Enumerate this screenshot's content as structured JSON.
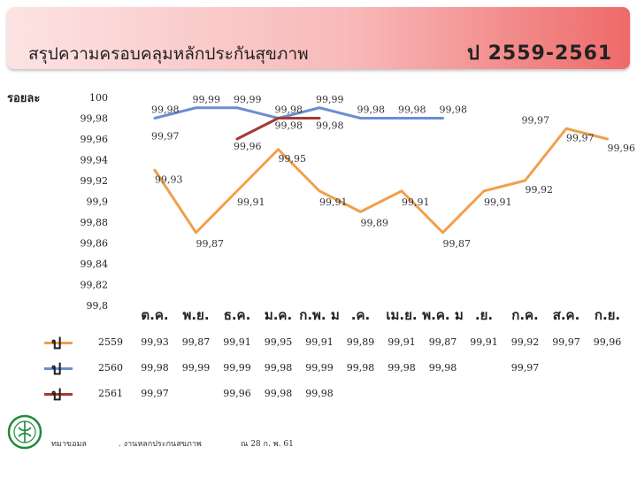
{
  "header": {
    "title": "สรุปความครอบคลุมหลักประกันสุขภาพ",
    "year_range": "ป  2559-2561"
  },
  "unit_label": "รอยละ",
  "legend_rows": [
    {
      "key": "ป",
      "year": "2559",
      "color": "#f0a04b"
    },
    {
      "key": "ป",
      "year": "2560",
      "color": "#6a8fd0"
    },
    {
      "key": "ป",
      "year": "2561",
      "color": "#a33a32"
    }
  ],
  "chart_data": {
    "type": "line",
    "categories": [
      "ต.ค.",
      "พ.ย.",
      "ธ.ค.",
      "ม.ค.",
      "ก.พ.",
      "มี.ค.",
      "เม.ย.",
      "พ.ค.",
      "มิ.ย.",
      "ก.ค.",
      "ส.ค.",
      "ก.ย."
    ],
    "category_display": [
      "ต.ค.",
      "พ.ย.",
      "ธ.ค.",
      "ม.ค.",
      "ก.พ. ม",
      ".ค.",
      "เม.ย.",
      "พ.ค. ม",
      ".ย.",
      "ก.ค.",
      "ส.ค.",
      "ก.ย."
    ],
    "ylim": [
      99.8,
      100
    ],
    "yticks": [
      "100",
      "99,98",
      "99,96",
      "99,94",
      "99,92",
      "99,9",
      "99,88",
      "99,86",
      "99,84",
      "99,82",
      "99,8"
    ],
    "series": [
      {
        "name": "2559",
        "color": "#f0a04b",
        "values": [
          99.93,
          99.87,
          99.91,
          99.95,
          99.91,
          99.89,
          99.91,
          99.87,
          99.91,
          99.92,
          99.97,
          99.96
        ],
        "labels": [
          "99,93",
          "99,87",
          "99,91",
          "99,95",
          "99,91",
          "99,89",
          "99,91",
          "99,87",
          "99,91",
          "99,92",
          "99,97",
          "99,96"
        ]
      },
      {
        "name": "2560",
        "color": "#6a8fd0",
        "values": [
          99.98,
          99.99,
          99.99,
          99.98,
          99.99,
          99.98,
          99.98,
          99.98,
          null,
          99.97,
          null,
          null
        ],
        "labels": [
          "99,98",
          "99,99",
          "99,99",
          "99,98",
          "99,99",
          "99,98",
          "99,98",
          "99,98",
          "",
          "99,97",
          "",
          ""
        ]
      },
      {
        "name": "2561",
        "color": "#a33a32",
        "values": [
          99.97,
          null,
          99.96,
          99.98,
          99.98,
          null,
          null,
          null,
          null,
          null,
          null,
          null
        ],
        "labels": [
          "99,97",
          "",
          "99,96",
          "99,98",
          "99,98",
          "",
          "",
          "",
          "",
          "",
          "",
          ""
        ]
      }
    ]
  },
  "footer": {
    "source": "ทมาขอมล",
    "agency": ". งานหลกประกนสขภาพ",
    "date": "ณ 28 ก. พ. 61"
  }
}
